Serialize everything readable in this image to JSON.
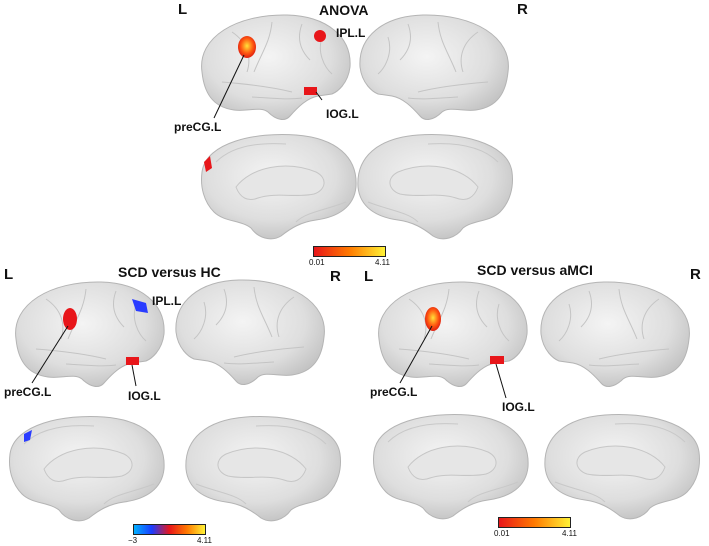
{
  "panels": {
    "anova": {
      "title": "ANOVA",
      "left_label": "L",
      "right_label": "R",
      "regions": {
        "ipl": "IPL.L",
        "iog": "IOG.L",
        "precg": "preCG.L"
      },
      "colorbar": {
        "min": "0.01",
        "max": "4.11",
        "colors": [
          "#e8161a",
          "#ff7a00",
          "#fff236"
        ]
      }
    },
    "scd_vs_hc": {
      "title": "SCD versus HC",
      "left_label": "L",
      "right_label": "R",
      "regions": {
        "ipl": "IPL.L",
        "iog": "IOG.L",
        "precg": "preCG.L"
      },
      "colorbar": {
        "min": "−3",
        "max": "4.11",
        "colors": [
          "#00b0ff",
          "#1a3cff",
          "#e8161a",
          "#ff7a00",
          "#fff236"
        ]
      }
    },
    "scd_vs_amci": {
      "title": "SCD versus aMCI",
      "left_label": "L",
      "right_label": "R",
      "regions": {
        "iog": "IOG.L",
        "precg": "preCG.L"
      },
      "colorbar": {
        "min": "0.01",
        "max": "4.11",
        "colors": [
          "#e8161a",
          "#ff7a00",
          "#fff236"
        ]
      }
    }
  },
  "colors": {
    "brain_fill": "#dcdcdc",
    "brain_edge": "#b4b4b4",
    "positive_cluster": "#e8161a",
    "negative_cluster": "#2a3cff"
  }
}
